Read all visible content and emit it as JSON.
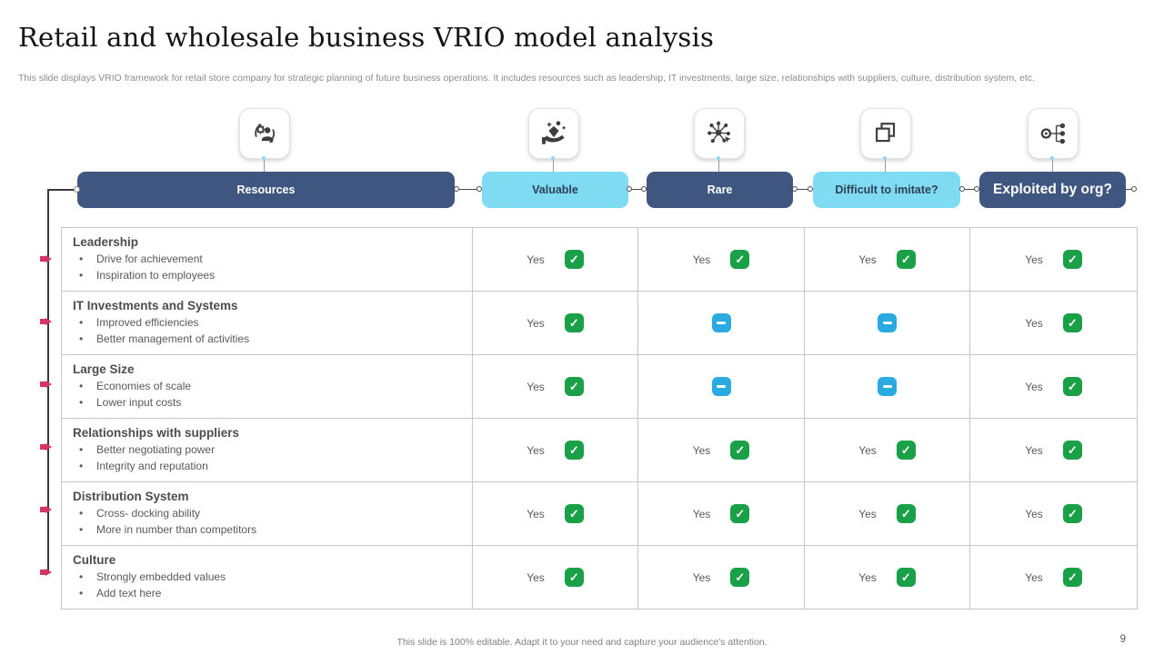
{
  "slide": {
    "title": "Retail and wholesale business VRIO model analysis",
    "description": "This slide displays VRIO framework for retail store company for strategic planning of future business operations. It includes resources such as leadership, IT investments, large size, relationships with suppliers, culture, distribution system, etc.",
    "footer_note": "This slide is 100% editable. Adapt it to your need and capture your audience's attention.",
    "page_number": "9"
  },
  "glyphs": {
    "check": "✓"
  },
  "colors": {
    "dark_blue": "#3E5680",
    "light_blue": "#7FDBF2",
    "green_check": "#1AA046",
    "blue_neutral": "#29ABE2",
    "marker_pink": "#D63464"
  },
  "header": {
    "columns": [
      {
        "label": "Resources",
        "variant": "dark",
        "icon": "people-gear-icon"
      },
      {
        "label": "Valuable",
        "variant": "light",
        "icon": "hand-diamond-icon"
      },
      {
        "label": "Rare",
        "variant": "dark",
        "icon": "network-nodes-icon"
      },
      {
        "label": "Difficult to imitate?",
        "variant": "light",
        "icon": "overlapping-squares-icon"
      },
      {
        "label": "Exploited by org?",
        "variant": "dark",
        "icon": "org-distribution-icon"
      }
    ]
  },
  "rows": [
    {
      "title": "Leadership",
      "bullets": [
        "Drive for achievement",
        "Inspiration to employees"
      ],
      "verdicts": [
        {
          "label": "Yes",
          "state": "yes"
        },
        {
          "label": "Yes",
          "state": "yes"
        },
        {
          "label": "Yes",
          "state": "yes"
        },
        {
          "label": "Yes",
          "state": "yes"
        }
      ]
    },
    {
      "title": "IT Investments and Systems",
      "bullets": [
        "Improved efficiencies",
        "Better management of activities"
      ],
      "verdicts": [
        {
          "label": "Yes",
          "state": "yes"
        },
        {
          "state": "neutral"
        },
        {
          "state": "neutral"
        },
        {
          "label": "Yes",
          "state": "yes"
        }
      ]
    },
    {
      "title": "Large Size",
      "bullets": [
        "Economies of scale",
        "Lower input costs"
      ],
      "verdicts": [
        {
          "label": "Yes",
          "state": "yes"
        },
        {
          "state": "neutral"
        },
        {
          "state": "neutral"
        },
        {
          "label": "Yes",
          "state": "yes"
        }
      ]
    },
    {
      "title": "Relationships with suppliers",
      "bullets": [
        "Better negotiating power",
        "Integrity and reputation"
      ],
      "verdicts": [
        {
          "label": "Yes",
          "state": "yes"
        },
        {
          "label": "Yes",
          "state": "yes"
        },
        {
          "label": "Yes",
          "state": "yes"
        },
        {
          "label": "Yes",
          "state": "yes"
        }
      ]
    },
    {
      "title": "Distribution System",
      "bullets": [
        "Cross- docking ability",
        "More in number than competitors"
      ],
      "verdicts": [
        {
          "label": "Yes",
          "state": "yes"
        },
        {
          "label": "Yes",
          "state": "yes"
        },
        {
          "label": "Yes",
          "state": "yes"
        },
        {
          "label": "Yes",
          "state": "yes"
        }
      ]
    },
    {
      "title": "Culture",
      "bullets": [
        "Strongly embedded values",
        "Add text here"
      ],
      "verdicts": [
        {
          "label": "Yes",
          "state": "yes"
        },
        {
          "label": "Yes",
          "state": "yes"
        },
        {
          "label": "Yes",
          "state": "yes"
        },
        {
          "label": "Yes",
          "state": "yes"
        }
      ]
    }
  ]
}
